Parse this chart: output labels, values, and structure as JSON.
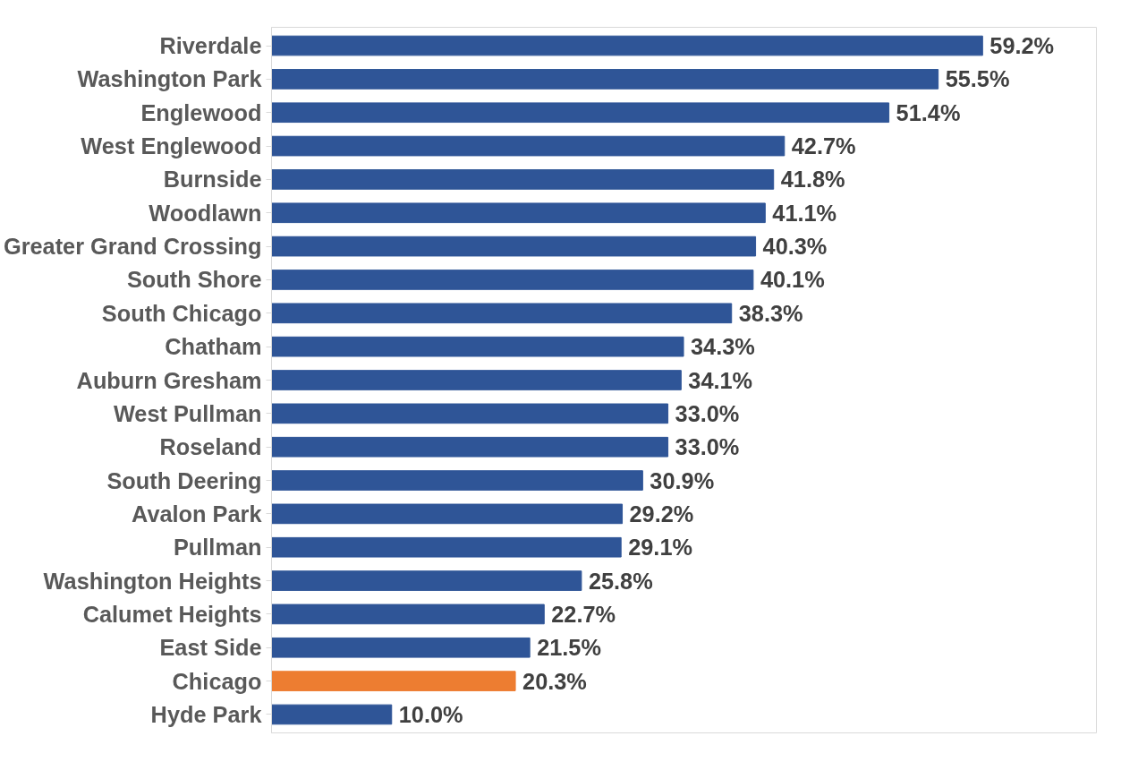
{
  "chart_data": {
    "type": "bar",
    "orientation": "horizontal",
    "categories": [
      "Riverdale",
      "Washington Park",
      "Englewood",
      "West Englewood",
      "Burnside",
      "Woodlawn",
      "Greater Grand Crossing",
      "South Shore",
      "South Chicago",
      "Chatham",
      "Auburn Gresham",
      "West Pullman",
      "Roseland",
      "South Deering",
      "Avalon Park",
      "Pullman",
      "Washington Heights",
      "Calumet Heights",
      "East Side",
      "Chicago",
      "Hyde Park"
    ],
    "values": [
      59.2,
      55.5,
      51.4,
      42.7,
      41.8,
      41.1,
      40.3,
      40.1,
      38.3,
      34.3,
      34.1,
      33.0,
      33.0,
      30.9,
      29.2,
      29.1,
      25.8,
      22.7,
      21.5,
      20.3,
      10.0
    ],
    "value_labels": [
      "59.2%",
      "55.5%",
      "51.4%",
      "42.7%",
      "41.8%",
      "41.1%",
      "40.3%",
      "40.1%",
      "38.3%",
      "34.3%",
      "34.1%",
      "33.0%",
      "33.0%",
      "30.9%",
      "29.2%",
      "29.1%",
      "25.8%",
      "22.7%",
      "21.5%",
      "20.3%",
      "10.0%"
    ],
    "colors": [
      "#2f5597",
      "#2f5597",
      "#2f5597",
      "#2f5597",
      "#2f5597",
      "#2f5597",
      "#2f5597",
      "#2f5597",
      "#2f5597",
      "#2f5597",
      "#2f5597",
      "#2f5597",
      "#2f5597",
      "#2f5597",
      "#2f5597",
      "#2f5597",
      "#2f5597",
      "#2f5597",
      "#2f5597",
      "#ed7d31",
      "#2f5597"
    ],
    "grid": false
  }
}
